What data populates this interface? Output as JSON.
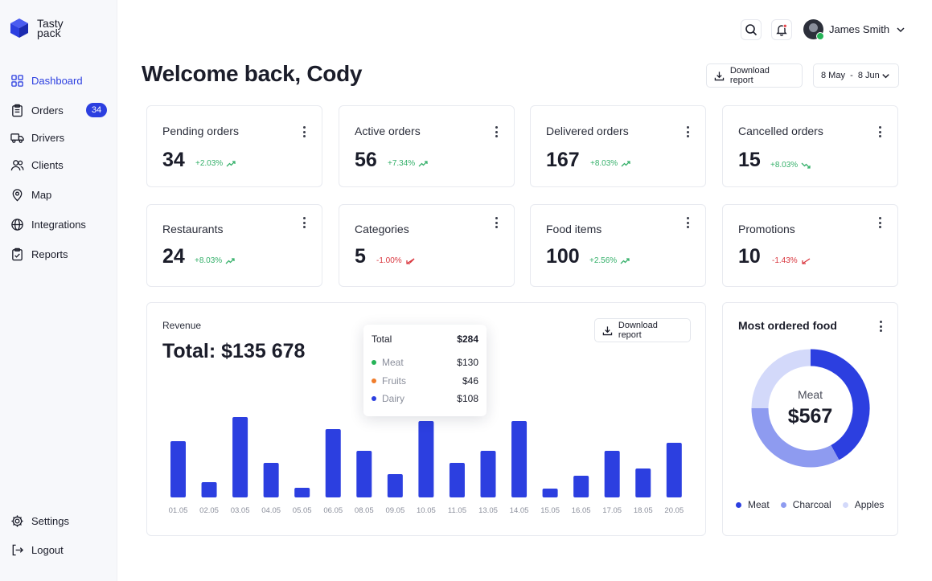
{
  "brand": {
    "name": "Tasty pack"
  },
  "sidebar": {
    "items": [
      {
        "label": "Dashboard",
        "icon": "grid-icon",
        "active": true
      },
      {
        "label": "Orders",
        "icon": "clipboard-icon",
        "badge": "34"
      },
      {
        "label": "Drivers",
        "icon": "truck-icon"
      },
      {
        "label": "Clients",
        "icon": "users-icon"
      },
      {
        "label": "Map",
        "icon": "map-pin-icon"
      },
      {
        "label": "Integrations",
        "icon": "globe-icon"
      },
      {
        "label": "Reports",
        "icon": "report-icon"
      }
    ],
    "bottom": [
      {
        "label": "Settings",
        "icon": "gear-icon"
      },
      {
        "label": "Logout",
        "icon": "logout-icon"
      }
    ]
  },
  "header": {
    "user_name": "James Smith",
    "welcome": "Welcome back, Cody",
    "download_label": "Download report",
    "date_range": "8 May  -  8 Jun"
  },
  "stats": [
    {
      "title": "Pending orders",
      "value": "34",
      "trend": "+2.03%",
      "direction": "up"
    },
    {
      "title": "Active orders",
      "value": "56",
      "trend": "+7.34%",
      "direction": "up"
    },
    {
      "title": "Delivered orders",
      "value": "167",
      "trend": "+8.03%",
      "direction": "up"
    },
    {
      "title": "Cancelled orders",
      "value": "15",
      "trend": "+8.03%",
      "direction": "up"
    },
    {
      "title": "Restaurants",
      "value": "24",
      "trend": "+8.03%",
      "direction": "up"
    },
    {
      "title": "Categories",
      "value": "5",
      "trend": "-1.00%",
      "direction": "down"
    },
    {
      "title": "Food items",
      "value": "100",
      "trend": "+2.56%",
      "direction": "up"
    },
    {
      "title": "Promotions",
      "value": "10",
      "trend": "-1.43%",
      "direction": "down"
    }
  ],
  "revenue": {
    "label": "Revenue",
    "total": "Total: $135 678",
    "download_label": "Download report"
  },
  "tooltip": {
    "title": "Total",
    "total": "$284",
    "rows": [
      {
        "name": "Meat",
        "value": "$130",
        "color": "#25b357"
      },
      {
        "name": "Fruits",
        "value": "$46",
        "color": "#f07d2c"
      },
      {
        "name": "Dairy",
        "value": "$108",
        "color": "#2c3fe0"
      }
    ]
  },
  "most_ordered": {
    "title": "Most ordered food",
    "center_label": "Meat",
    "center_value": "$567",
    "legend": [
      {
        "name": "Meat",
        "color": "#2c3fe0"
      },
      {
        "name": "Charcoal",
        "color": "#8e9bf0"
      },
      {
        "name": "Apples",
        "color": "#d3d9fa"
      }
    ]
  },
  "chart_data": [
    {
      "type": "bar",
      "categories": [
        "01.05",
        "02.05",
        "03.05",
        "04.05",
        "05.05",
        "06.05",
        "08.05",
        "09.05",
        "10.05",
        "11.05",
        "13.05",
        "14.05",
        "15.05",
        "16.05",
        "17.05",
        "18.05",
        "20.05"
      ],
      "values": [
        70,
        19,
        100,
        43,
        12,
        85,
        58,
        29,
        95,
        43,
        58,
        95,
        11,
        27,
        58,
        36,
        68
      ],
      "color": "#2c3fe0",
      "ylim": [
        0,
        100
      ],
      "grid": false,
      "title": "Revenue"
    },
    {
      "type": "pie",
      "categories": [
        "Meat",
        "Charcoal",
        "Apples"
      ],
      "values": [
        42,
        33,
        25
      ],
      "colors": [
        "#2c3fe0",
        "#8e9bf0",
        "#d3d9fa"
      ]
    }
  ]
}
